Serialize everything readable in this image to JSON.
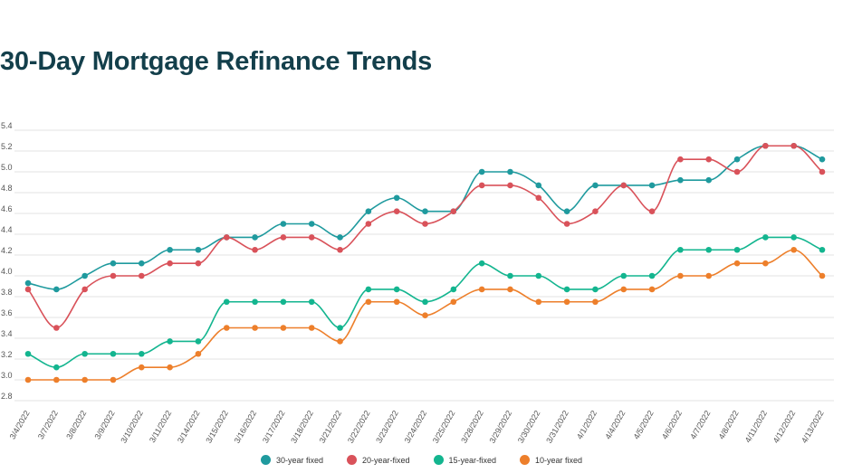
{
  "chart_data": {
    "type": "line",
    "title": "30-Day Mortgage Refinance Trends",
    "x": [
      "3/4/2022",
      "3/7/2022",
      "3/8/2022",
      "3/9/2022",
      "3/10/2022",
      "3/11/2022",
      "3/14/2022",
      "3/15/2022",
      "3/16/2022",
      "3/17/2022",
      "3/18/2022",
      "3/21/2022",
      "3/22/2022",
      "3/23/2022",
      "3/24/2022",
      "3/25/2022",
      "3/28/2022",
      "3/29/2022",
      "3/30/2022",
      "3/31/2022",
      "4/1/2022",
      "4/4/2022",
      "4/5/2022",
      "4/6/2022",
      "4/7/2022",
      "4/8/2022",
      "4/11/2022",
      "4/12/2022",
      "4/13/2022"
    ],
    "yticks": [
      "2.8",
      "3.0",
      "3.2",
      "3.4",
      "3.6",
      "3.8",
      "4.0",
      "4.2",
      "4.4",
      "4.6",
      "4.8",
      "5.0",
      "5.2",
      "5.4"
    ],
    "ylim": [
      2.8,
      5.4
    ],
    "grid": true,
    "legend_position": "bottom",
    "series": [
      {
        "name": "30-year fixed",
        "color": "#1f9a9e",
        "values": [
          3.93,
          3.87,
          4.0,
          4.12,
          4.12,
          4.25,
          4.25,
          4.37,
          4.37,
          4.5,
          4.5,
          4.37,
          4.62,
          4.75,
          4.62,
          4.62,
          5.0,
          5.0,
          4.87,
          4.62,
          4.87,
          4.87,
          4.87,
          4.92,
          4.92,
          5.12,
          5.25,
          5.25,
          5.12
        ]
      },
      {
        "name": "20-year-fixed",
        "color": "#d9525a",
        "values": [
          3.87,
          3.5,
          3.87,
          4.0,
          4.0,
          4.12,
          4.12,
          4.37,
          4.25,
          4.37,
          4.37,
          4.25,
          4.5,
          4.62,
          4.5,
          4.62,
          4.87,
          4.87,
          4.75,
          4.5,
          4.62,
          4.87,
          4.62,
          5.12,
          5.12,
          5.0,
          5.25,
          5.25,
          5.0
        ]
      },
      {
        "name": "15-year-fixed",
        "color": "#13b58f",
        "values": [
          3.25,
          3.12,
          3.25,
          3.25,
          3.25,
          3.37,
          3.37,
          3.75,
          3.75,
          3.75,
          3.75,
          3.5,
          3.87,
          3.87,
          3.75,
          3.87,
          4.12,
          4.0,
          4.0,
          3.87,
          3.87,
          4.0,
          4.0,
          4.25,
          4.25,
          4.25,
          4.37,
          4.37,
          4.25
        ]
      },
      {
        "name": "10-year fixed",
        "color": "#ed7f2b",
        "values": [
          3.0,
          3.0,
          3.0,
          3.0,
          3.12,
          3.12,
          3.25,
          3.5,
          3.5,
          3.5,
          3.5,
          3.37,
          3.75,
          3.75,
          3.62,
          3.75,
          3.87,
          3.87,
          3.75,
          3.75,
          3.75,
          3.87,
          3.87,
          4.0,
          4.0,
          4.12,
          4.12,
          4.25,
          4.0
        ]
      }
    ]
  }
}
